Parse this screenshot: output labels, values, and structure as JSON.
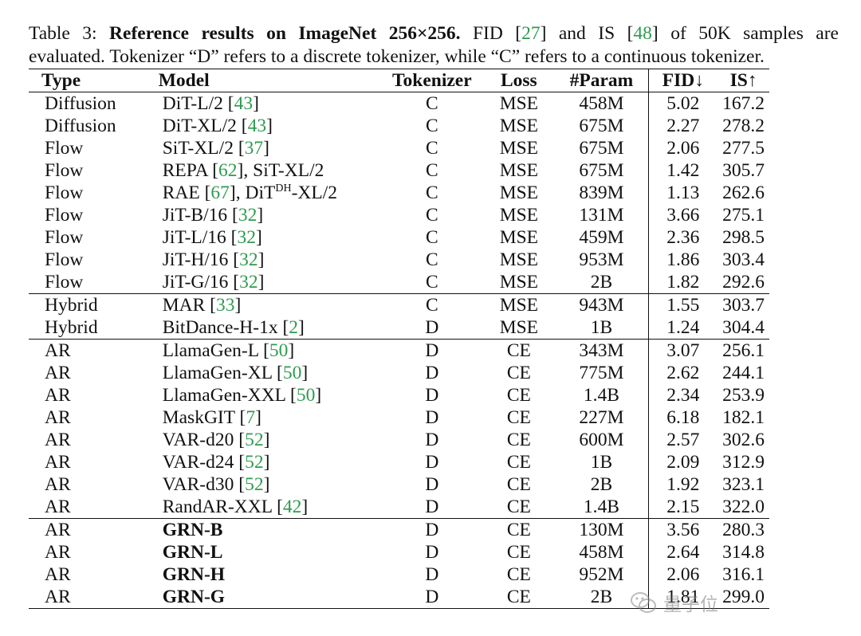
{
  "caption": {
    "label": "Table 3: ",
    "bold": "Reference results on ImageNet 256×256.",
    "t1": " FID [",
    "cite_fid": "27",
    "t2": "] and IS [",
    "cite_is": "48",
    "t3": "] of 50K samples are",
    "line2": "evaluated. Tokenizer “D” refers to a discrete tokenizer, while “C” refers to a continuous tokenizer."
  },
  "columns": {
    "type": "Type",
    "model": "Model",
    "tokenizer": "Tokenizer",
    "loss": "Loss",
    "param": "#Param",
    "fid": "FID↓",
    "is": "IS↑"
  },
  "groups": [
    {
      "rows": [
        {
          "type": "Diffusion",
          "model": "DiT-L/2 [",
          "cite": "43",
          "suffix": "]",
          "tokenizer": "C",
          "loss": "MSE",
          "param": "458M",
          "fid": "5.02",
          "is": "167.2"
        },
        {
          "type": "Diffusion",
          "model": "DiT-XL/2 [",
          "cite": "43",
          "suffix": "]",
          "tokenizer": "C",
          "loss": "MSE",
          "param": "675M",
          "fid": "2.27",
          "is": "278.2"
        },
        {
          "type": "Flow",
          "model": "SiT-XL/2 [",
          "cite": "37",
          "suffix": "]",
          "tokenizer": "C",
          "loss": "MSE",
          "param": "675M",
          "fid": "2.06",
          "is": "277.5"
        },
        {
          "type": "Flow",
          "model": "REPA [",
          "cite": "62",
          "suffix": "], SiT-XL/2",
          "tokenizer": "C",
          "loss": "MSE",
          "param": "675M",
          "fid": "1.42",
          "is": "305.7"
        },
        {
          "type": "Flow",
          "model": "RAE [",
          "cite": "67",
          "suffix": "], DiT",
          "sup": "DH",
          "suffix2": "-XL/2",
          "tokenizer": "C",
          "loss": "MSE",
          "param": "839M",
          "fid": "1.13",
          "is": "262.6"
        },
        {
          "type": "Flow",
          "model": "JiT-B/16 [",
          "cite": "32",
          "suffix": "]",
          "tokenizer": "C",
          "loss": "MSE",
          "param": "131M",
          "fid": "3.66",
          "is": "275.1"
        },
        {
          "type": "Flow",
          "model": "JiT-L/16 [",
          "cite": "32",
          "suffix": "]",
          "tokenizer": "C",
          "loss": "MSE",
          "param": "459M",
          "fid": "2.36",
          "is": "298.5"
        },
        {
          "type": "Flow",
          "model": "JiT-H/16 [",
          "cite": "32",
          "suffix": "]",
          "tokenizer": "C",
          "loss": "MSE",
          "param": "953M",
          "fid": "1.86",
          "is": "303.4"
        },
        {
          "type": "Flow",
          "model": "JiT-G/16 [",
          "cite": "32",
          "suffix": "]",
          "tokenizer": "C",
          "loss": "MSE",
          "param": "2B",
          "fid": "1.82",
          "is": "292.6"
        }
      ]
    },
    {
      "rows": [
        {
          "type": "Hybrid",
          "model": "MAR [",
          "cite": "33",
          "suffix": "]",
          "tokenizer": "C",
          "loss": "MSE",
          "param": "943M",
          "fid": "1.55",
          "is": "303.7"
        },
        {
          "type": "Hybrid",
          "model": "BitDance-H-1x [",
          "cite": "2",
          "suffix": "]",
          "tokenizer": "D",
          "loss": "MSE",
          "param": "1B",
          "fid": "1.24",
          "is": "304.4"
        }
      ]
    },
    {
      "rows": [
        {
          "type": "AR",
          "model": "LlamaGen-L [",
          "cite": "50",
          "suffix": "]",
          "tokenizer": "D",
          "loss": "CE",
          "param": "343M",
          "fid": "3.07",
          "is": "256.1"
        },
        {
          "type": "AR",
          "model": "LlamaGen-XL [",
          "cite": "50",
          "suffix": "]",
          "tokenizer": "D",
          "loss": "CE",
          "param": "775M",
          "fid": "2.62",
          "is": "244.1"
        },
        {
          "type": "AR",
          "model": "LlamaGen-XXL [",
          "cite": "50",
          "suffix": "]",
          "tokenizer": "D",
          "loss": "CE",
          "param": "1.4B",
          "fid": "2.34",
          "is": "253.9"
        },
        {
          "type": "AR",
          "model": "MaskGIT [",
          "cite": "7",
          "suffix": "]",
          "tokenizer": "D",
          "loss": "CE",
          "param": "227M",
          "fid": "6.18",
          "is": "182.1"
        },
        {
          "type": "AR",
          "model": "VAR-d20 [",
          "cite": "52",
          "suffix": "]",
          "tokenizer": "D",
          "loss": "CE",
          "param": "600M",
          "fid": "2.57",
          "is": "302.6"
        },
        {
          "type": "AR",
          "model": "VAR-d24 [",
          "cite": "52",
          "suffix": "]",
          "tokenizer": "D",
          "loss": "CE",
          "param": "1B",
          "fid": "2.09",
          "is": "312.9"
        },
        {
          "type": "AR",
          "model": "VAR-d30 [",
          "cite": "52",
          "suffix": "]",
          "tokenizer": "D",
          "loss": "CE",
          "param": "2B",
          "fid": "1.92",
          "is": "323.1"
        },
        {
          "type": "AR",
          "model": "RandAR-XXL [",
          "cite": "42",
          "suffix": "]",
          "tokenizer": "D",
          "loss": "CE",
          "param": "1.4B",
          "fid": "2.15",
          "is": "322.0"
        }
      ]
    },
    {
      "rows": [
        {
          "type": "AR",
          "model": "GRN-B",
          "bold": true,
          "tokenizer": "D",
          "loss": "CE",
          "param": "130M",
          "fid": "3.56",
          "is": "280.3"
        },
        {
          "type": "AR",
          "model": "GRN-L",
          "bold": true,
          "tokenizer": "D",
          "loss": "CE",
          "param": "458M",
          "fid": "2.64",
          "is": "314.8"
        },
        {
          "type": "AR",
          "model": "GRN-H",
          "bold": true,
          "tokenizer": "D",
          "loss": "CE",
          "param": "952M",
          "fid": "2.06",
          "is": "316.1"
        },
        {
          "type": "AR",
          "model": "GRN-G",
          "bold": true,
          "tokenizer": "D",
          "loss": "CE",
          "param": "2B",
          "fid": "1.81",
          "is": "299.0"
        }
      ]
    }
  ],
  "watermark": {
    "text": "量子位",
    "icon": "wechat-icon"
  }
}
